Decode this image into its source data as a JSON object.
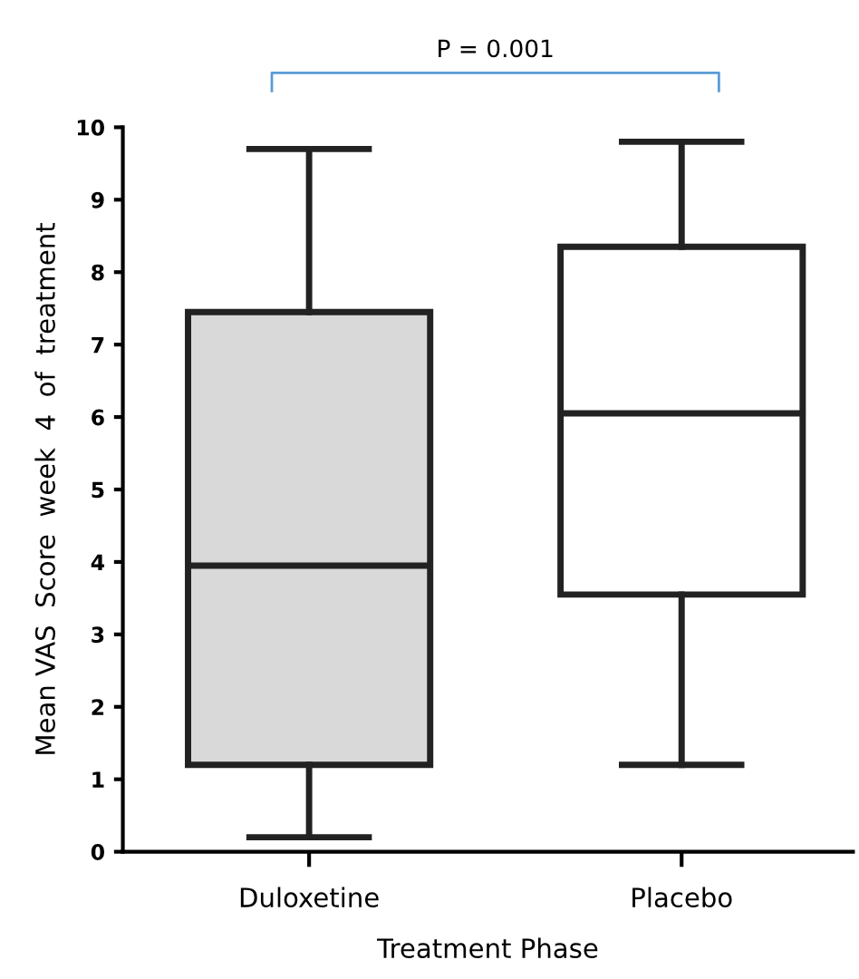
{
  "chart_data": {
    "type": "box",
    "categories": [
      "Duloxetine",
      "Placebo"
    ],
    "boxes": [
      {
        "low": 0.2,
        "q1": 1.2,
        "median": 3.95,
        "q3": 7.45,
        "high": 9.7
      },
      {
        "low": 1.2,
        "q1": 3.55,
        "median": 6.05,
        "q3": 8.35,
        "high": 9.8
      }
    ],
    "colors": [
      "#d9d9d9",
      "#ffffff"
    ],
    "xlabel": "Treatment Phase",
    "ylabel": "Mean VAS  Score  week  4  of  treatment",
    "ylim": [
      0,
      10
    ],
    "yticks": [
      0,
      1,
      2,
      3,
      4,
      5,
      6,
      7,
      8,
      9,
      10
    ],
    "annotations": [
      "P = 0.001"
    ],
    "grid": false,
    "legend": false
  }
}
